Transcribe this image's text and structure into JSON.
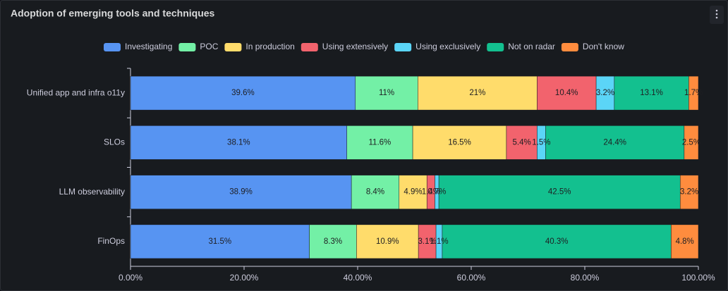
{
  "chart_data": {
    "type": "bar",
    "orientation": "horizontal",
    "stacked": true,
    "title": "Adoption of emerging tools and techniques",
    "categories": [
      "Unified app and infra o11y",
      "SLOs",
      "LLM observability",
      "FinOps"
    ],
    "series": [
      {
        "name": "Investigating",
        "color": "#5794f2",
        "values": [
          39.6,
          38.1,
          38.9,
          31.5
        ],
        "value_labels": [
          "39.6%",
          "38.1%",
          "38.9%",
          "31.5%"
        ]
      },
      {
        "name": "POC",
        "color": "#73f0a6",
        "values": [
          11,
          11.6,
          8.4,
          8.3
        ],
        "value_labels": [
          "11%",
          "11.6%",
          "8.4%",
          "8.3%"
        ]
      },
      {
        "name": "In production",
        "color": "#ffdc6b",
        "values": [
          21,
          16.5,
          4.9,
          10.9
        ],
        "value_labels": [
          "21%",
          "16.5%",
          "4.9%",
          "10.9%"
        ]
      },
      {
        "name": "Using extensively",
        "color": "#f2636d",
        "values": [
          10.4,
          5.4,
          1.4,
          3.1
        ],
        "value_labels": [
          "10.4%",
          "5.4%",
          "1.4%",
          "3.1%"
        ]
      },
      {
        "name": "Using exclusively",
        "color": "#5bd5f7",
        "values": [
          3.2,
          1.5,
          0.7,
          1.1
        ],
        "value_labels": [
          "3.2%",
          "1.5%",
          "0.7%",
          "1.1%"
        ]
      },
      {
        "name": "Not on radar",
        "color": "#13c08f",
        "values": [
          13.1,
          24.4,
          42.5,
          40.3
        ],
        "value_labels": [
          "13.1%",
          "24.4%",
          "42.5%",
          "40.3%"
        ]
      },
      {
        "name": "Don't know",
        "color": "#ff8c3e",
        "values": [
          1.7,
          2.5,
          3.2,
          4.8
        ],
        "value_labels": [
          "1.7%",
          "2.5%",
          "3.2%",
          "4.8%"
        ]
      }
    ],
    "xlim": [
      0,
      100
    ],
    "xticks": [
      {
        "value": 0,
        "label": "0.00%"
      },
      {
        "value": 20,
        "label": "20.00%"
      },
      {
        "value": 40,
        "label": "40.00%"
      },
      {
        "value": 60,
        "label": "60.00%"
      },
      {
        "value": 80,
        "label": "80.00%"
      },
      {
        "value": 100,
        "label": "100.00%"
      }
    ],
    "legend": "top"
  }
}
